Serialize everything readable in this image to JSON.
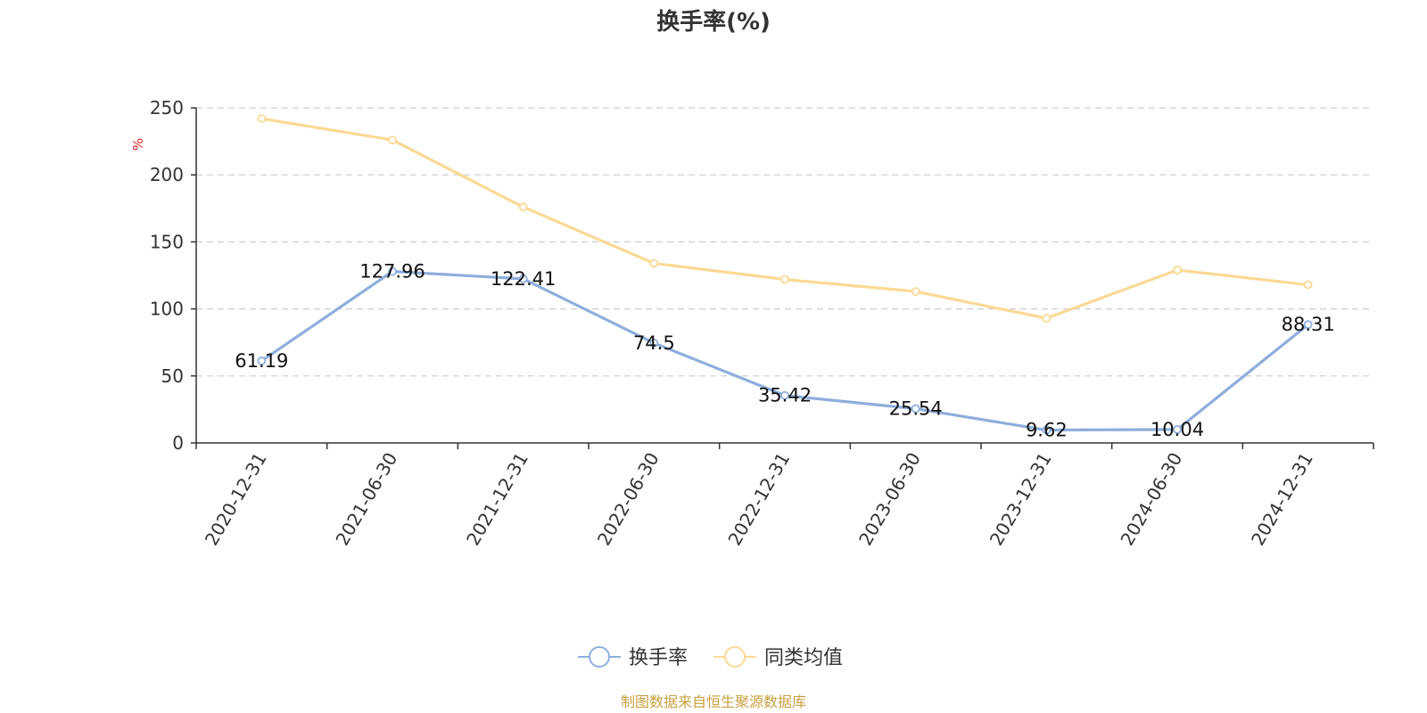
{
  "chart_data": {
    "type": "line",
    "title": "换手率(%)",
    "ylabel": "%",
    "ylim": [
      0,
      250
    ],
    "yticks": [
      0,
      50,
      100,
      150,
      200,
      250
    ],
    "grid": true,
    "legend_position": "bottom",
    "categories": [
      "2020-12-31",
      "2021-06-30",
      "2021-12-31",
      "2022-06-30",
      "2022-12-31",
      "2023-06-30",
      "2023-12-31",
      "2024-06-30",
      "2024-12-31"
    ],
    "series": [
      {
        "name": "换手率",
        "color": "#8eaedb",
        "show_labels": true,
        "values": [
          61.19,
          127.96,
          122.41,
          74.5,
          35.42,
          25.54,
          9.62,
          10.04,
          88.31
        ]
      },
      {
        "name": "同类均值",
        "color": "#fbd995",
        "show_labels": false,
        "values": [
          242,
          226,
          176,
          134,
          122,
          113,
          93,
          129,
          118
        ]
      }
    ]
  },
  "source_text": "制图数据来自恒生聚源数据库",
  "colors": {
    "axis": "#333333",
    "grid": "#cccccc",
    "unit_label": "#e02020",
    "source_text": "#c8a040"
  }
}
